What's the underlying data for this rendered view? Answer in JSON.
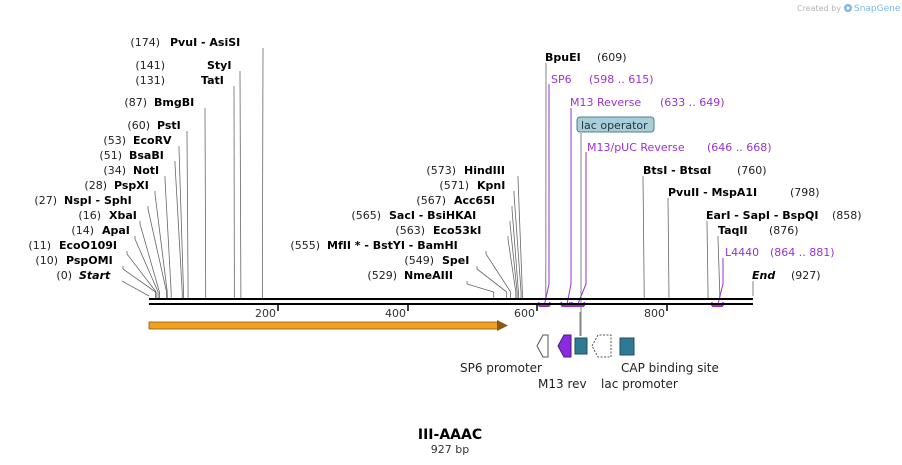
{
  "watermark": {
    "prefix": "Created by",
    "brand": "SnapGene"
  },
  "map": {
    "name": "III-AAAC",
    "length_label": "927 bp",
    "length_bp": 927
  },
  "enzymes": [
    {
      "pos": "(174)",
      "name": "PvuI  -  AsiSI",
      "bp": 174
    },
    {
      "pos": "(141)",
      "name": "StyI",
      "bp": 141
    },
    {
      "pos": "(131)",
      "name": "TatI",
      "bp": 131
    },
    {
      "pos": "(87)",
      "name": "BmgBI",
      "bp": 87
    },
    {
      "pos": "(60)",
      "name": "PstI",
      "bp": 60
    },
    {
      "pos": "(53)",
      "name": "EcoRV",
      "bp": 53
    },
    {
      "pos": "(51)",
      "name": "BsaBI",
      "bp": 51
    },
    {
      "pos": "(34)",
      "name": "NotI",
      "bp": 34
    },
    {
      "pos": "(28)",
      "name": "PspXI",
      "bp": 28
    },
    {
      "pos": "(27)",
      "name": "NspI  -  SphI",
      "bp": 27
    },
    {
      "pos": "(16)",
      "name": "XbaI",
      "bp": 16
    },
    {
      "pos": "(14)",
      "name": "ApaI",
      "bp": 14
    },
    {
      "pos": "(11)",
      "name": "EcoO109I",
      "bp": 11
    },
    {
      "pos": "(10)",
      "name": "PspOMI",
      "bp": 10
    },
    {
      "pos": "(573)",
      "name": "HindIII",
      "bp": 573
    },
    {
      "pos": "(571)",
      "name": "KpnI",
      "bp": 571
    },
    {
      "pos": "(567)",
      "name": "Acc65I",
      "bp": 567
    },
    {
      "pos": "(565)",
      "name": "SacI  -  BsiHKAI",
      "bp": 565
    },
    {
      "pos": "(563)",
      "name": "Eco53kI",
      "bp": 563
    },
    {
      "pos": "(555)",
      "name": "MfII * - BstYI  - BamHI",
      "bp": 555
    },
    {
      "pos": "(549)",
      "name": "SpeI",
      "bp": 549
    },
    {
      "pos": "(529)",
      "name": "NmeAIII",
      "bp": 529
    },
    {
      "name": "BpuEI",
      "pos": "(609)",
      "bp": 609
    },
    {
      "name": "BtsI  -  BtsαI",
      "pos": "(760)",
      "bp": 760
    },
    {
      "name": "PvuII  -  MspA1I",
      "pos": "(798)",
      "bp": 798
    },
    {
      "name": "EarI  -  SapI  -  BspQI",
      "pos": "(858)",
      "bp": 858
    },
    {
      "name": "TaqII",
      "pos": "(876)",
      "bp": 876
    }
  ],
  "ends": {
    "start": {
      "pos": "(0)",
      "name": "Start"
    },
    "end": {
      "name": "End",
      "pos": "(927)"
    }
  },
  "primers": [
    {
      "name": "SP6",
      "range": "(598 .. 615)",
      "start": 598,
      "end": 615
    },
    {
      "name": "M13 Reverse",
      "range": "(633 .. 649)",
      "start": 633,
      "end": 649
    },
    {
      "name": "M13/pUC Reverse",
      "range": "(646 .. 668)",
      "start": 646,
      "end": 668
    },
    {
      "name": "L4440",
      "range": "(864 .. 881)",
      "start": 864,
      "end": 881
    }
  ],
  "lac_operator": {
    "label": "lac operator"
  },
  "ruler": {
    "ticks": [
      "200",
      "400",
      "600",
      "800"
    ]
  },
  "features": [
    {
      "label": "SP6 promoter"
    },
    {
      "label": "M13 rev"
    },
    {
      "label": "lac promoter"
    },
    {
      "label": "CAP binding site"
    }
  ],
  "colors": {
    "primer": "#9933cc",
    "feature_teal": "#2e7a94",
    "orf_fill": "#f2a020",
    "lac_operator_fill": "#a8cfd8"
  }
}
